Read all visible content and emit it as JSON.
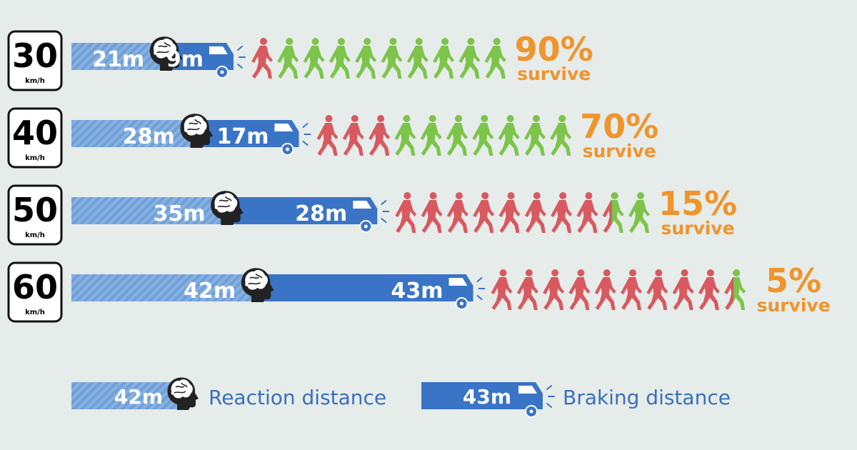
{
  "chart_data": {
    "type": "bar",
    "title": "",
    "xlabel": "",
    "ylabel": "",
    "rows": [
      {
        "speed": "30",
        "unit": "km/h",
        "reaction_m": 21,
        "braking_m": 9,
        "reaction_label": "21m",
        "braking_label": "9m",
        "survive_pct": 90,
        "survive_label": "90%",
        "survive_text": "survive",
        "pedestrians_hit": 1.0,
        "pedestrians_total": 10
      },
      {
        "speed": "40",
        "unit": "km/h",
        "reaction_m": 28,
        "braking_m": 17,
        "reaction_label": "28m",
        "braking_label": "17m",
        "survive_pct": 70,
        "survive_label": "70%",
        "survive_text": "survive",
        "pedestrians_hit": 3.0,
        "pedestrians_total": 10
      },
      {
        "speed": "50",
        "unit": "km/h",
        "reaction_m": 35,
        "braking_m": 28,
        "reaction_label": "35m",
        "braking_label": "28m",
        "survive_pct": 15,
        "survive_label": "15%",
        "survive_text": "survive",
        "pedestrians_hit": 8.5,
        "pedestrians_total": 10
      },
      {
        "speed": "60",
        "unit": "km/h",
        "reaction_m": 42,
        "braking_m": 43,
        "reaction_label": "42m",
        "braking_label": "43m",
        "survive_pct": 5,
        "survive_label": "5%",
        "survive_text": "survive",
        "pedestrians_hit": 9.5,
        "pedestrians_total": 10
      }
    ],
    "legend": {
      "reaction_value": "42m",
      "reaction_label": "Reaction distance",
      "braking_value": "43m",
      "braking_label": "Braking distance"
    },
    "colors": {
      "reaction_bar": "#7aa6da",
      "braking_bar": "#3a74c6",
      "bar_text": "#ffffff",
      "legend_text": "#3a6fbf",
      "head": "#222222",
      "pedestrian_hit": "#d8595f",
      "pedestrian_safe": "#7cc44a",
      "survive_text": "#f0942c",
      "sign_border": "#111111"
    }
  }
}
